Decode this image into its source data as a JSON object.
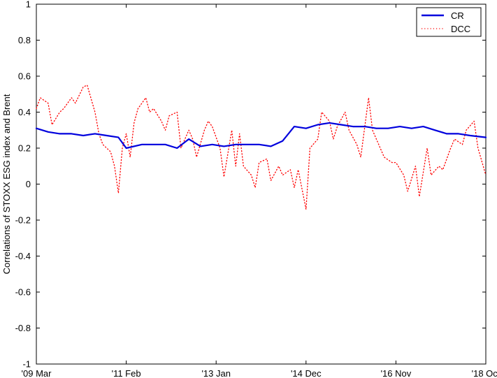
{
  "chart_data": {
    "type": "line",
    "title": "",
    "xlabel": "",
    "ylabel": "Correlations of STOXX ESG index and Brent",
    "ylim": [
      -1,
      1
    ],
    "yticks": [
      -1,
      -0.8,
      -0.6,
      -0.4,
      -0.2,
      0,
      0.2,
      0.4,
      0.6,
      0.8,
      1
    ],
    "ytick_labels": [
      "-1",
      "-0.8",
      "-0.6",
      "-0.4",
      "-0.2",
      "0",
      "0.2",
      "0.4",
      "0.6",
      "0.8",
      "1"
    ],
    "x_range": [
      "2009-03",
      "2018-10"
    ],
    "xticks": [
      "2009-03",
      "2011-02",
      "2013-01",
      "2014-12",
      "2016-11",
      "2018-10"
    ],
    "xtick_labels": [
      "'09 Mar",
      "'11 Feb",
      "'13 Jan",
      "'14 Dec",
      "'16 Nov",
      "'18 Oct"
    ],
    "grid": false,
    "legend_position": "top-right",
    "series": [
      {
        "name": "CR",
        "color": "#0000dd",
        "style": "solid",
        "x": [
          "2009-03",
          "2009-06",
          "2009-09",
          "2009-12",
          "2010-03",
          "2010-06",
          "2010-09",
          "2010-12",
          "2011-02",
          "2011-06",
          "2011-09",
          "2011-12",
          "2012-03",
          "2012-06",
          "2012-09",
          "2012-12",
          "2013-03",
          "2013-06",
          "2013-09",
          "2013-12",
          "2014-03",
          "2014-06",
          "2014-09",
          "2014-12",
          "2015-03",
          "2015-06",
          "2015-09",
          "2015-12",
          "2016-03",
          "2016-06",
          "2016-09",
          "2016-12",
          "2017-03",
          "2017-06",
          "2017-09",
          "2017-12",
          "2018-03",
          "2018-06",
          "2018-10"
        ],
        "values": [
          0.31,
          0.29,
          0.28,
          0.28,
          0.27,
          0.28,
          0.27,
          0.26,
          0.2,
          0.22,
          0.22,
          0.22,
          0.2,
          0.25,
          0.21,
          0.22,
          0.21,
          0.22,
          0.22,
          0.22,
          0.21,
          0.24,
          0.32,
          0.31,
          0.33,
          0.34,
          0.33,
          0.32,
          0.32,
          0.31,
          0.31,
          0.32,
          0.31,
          0.32,
          0.3,
          0.28,
          0.28,
          0.27,
          0.26
        ]
      },
      {
        "name": "DCC",
        "color": "#ff0000",
        "style": "dotted",
        "x": [
          "2009-03",
          "2009-04",
          "2009-06",
          "2009-07",
          "2009-09",
          "2009-10",
          "2009-12",
          "2010-01",
          "2010-03",
          "2010-04",
          "2010-06",
          "2010-07",
          "2010-08",
          "2010-10",
          "2010-11",
          "2010-12",
          "2011-01",
          "2011-02",
          "2011-03",
          "2011-04",
          "2011-05",
          "2011-07",
          "2011-08",
          "2011-09",
          "2011-11",
          "2011-12",
          "2012-01",
          "2012-03",
          "2012-04",
          "2012-06",
          "2012-07",
          "2012-08",
          "2012-10",
          "2012-11",
          "2012-12",
          "2013-02",
          "2013-03",
          "2013-05",
          "2013-06",
          "2013-07",
          "2013-08",
          "2013-10",
          "2013-11",
          "2013-12",
          "2014-02",
          "2014-03",
          "2014-05",
          "2014-06",
          "2014-08",
          "2014-09",
          "2014-10",
          "2014-12",
          "2015-01",
          "2015-03",
          "2015-04",
          "2015-06",
          "2015-07",
          "2015-08",
          "2015-10",
          "2015-11",
          "2016-01",
          "2016-02",
          "2016-04",
          "2016-05",
          "2016-07",
          "2016-08",
          "2016-10",
          "2016-11",
          "2017-01",
          "2017-02",
          "2017-04",
          "2017-05",
          "2017-07",
          "2017-08",
          "2017-10",
          "2017-11",
          "2018-01",
          "2018-02",
          "2018-04",
          "2018-05",
          "2018-07",
          "2018-08",
          "2018-10"
        ],
        "values": [
          0.42,
          0.48,
          0.45,
          0.33,
          0.4,
          0.42,
          0.48,
          0.45,
          0.54,
          0.55,
          0.4,
          0.28,
          0.22,
          0.18,
          0.1,
          -0.05,
          0.2,
          0.28,
          0.15,
          0.34,
          0.42,
          0.48,
          0.4,
          0.42,
          0.35,
          0.3,
          0.38,
          0.4,
          0.2,
          0.3,
          0.25,
          0.15,
          0.3,
          0.35,
          0.32,
          0.2,
          0.04,
          0.3,
          0.1,
          0.28,
          0.1,
          0.05,
          -0.02,
          0.12,
          0.14,
          0.02,
          0.1,
          0.05,
          0.08,
          -0.02,
          0.08,
          -0.14,
          0.2,
          0.25,
          0.4,
          0.35,
          0.25,
          0.32,
          0.4,
          0.3,
          0.22,
          0.15,
          0.48,
          0.3,
          0.2,
          0.15,
          0.12,
          0.12,
          0.05,
          -0.04,
          0.1,
          -0.07,
          0.2,
          0.05,
          0.1,
          0.08,
          0.2,
          0.25,
          0.22,
          0.3,
          0.35,
          0.2,
          0.05
        ]
      }
    ]
  }
}
